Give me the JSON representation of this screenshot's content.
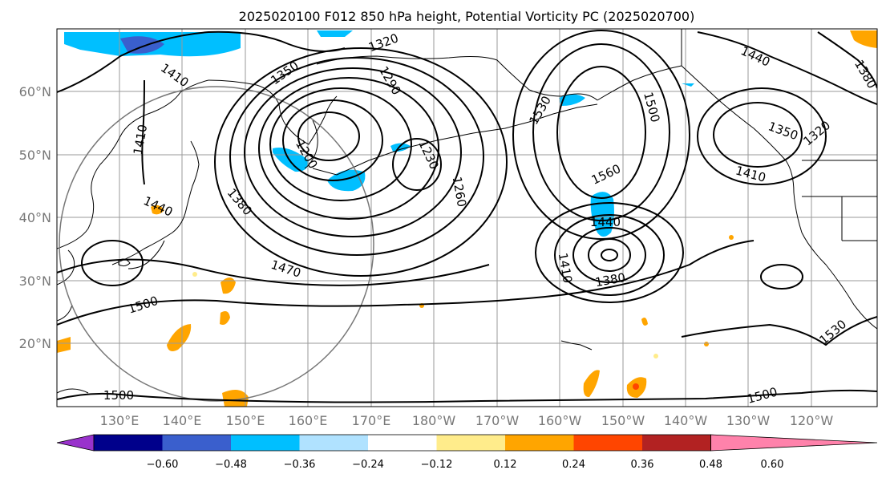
{
  "title": "2025020100 F012 850 hPa height, Potential Vorticity PC (2025020700)",
  "latitude_labels": [
    "20°N",
    "30°N",
    "40°N",
    "50°N",
    "60°N"
  ],
  "longitude_labels": [
    "130°E",
    "140°E",
    "150°E",
    "160°E",
    "170°E",
    "180°W",
    "170°W",
    "160°W",
    "150°W",
    "140°W",
    "130°W",
    "120°W"
  ],
  "contour_labels": [
    "1320",
    "1350",
    "1380",
    "1410",
    "1410",
    "1410",
    "1440",
    "1440",
    "1440",
    "1470",
    "1500",
    "1500",
    "1500",
    "1500",
    "1530",
    "1530",
    "1560",
    "1200",
    "1230",
    "1260",
    "1290",
    "1350",
    "1320",
    "1380",
    "1380",
    "1410"
  ],
  "colorbar": {
    "tick_labels": [
      "−0.60",
      "−0.48",
      "−0.36",
      "−0.24",
      "−0.12",
      "0.12",
      "0.24",
      "0.36",
      "0.48",
      "0.60"
    ],
    "colors": [
      "#9932cc",
      "#00008b",
      "#3a5fcd",
      "#00bfff",
      "#b0e2ff",
      "#ffffff",
      "#ffec8b",
      "#ffa500",
      "#ff4500",
      "#b22222",
      "#ff82ab"
    ]
  },
  "colors": {
    "height_contour": "#000000",
    "gridline": "#9a9a9a",
    "axis_label": "#777777",
    "pv_negative": "#00bfff",
    "pv_positive": "#ffa500"
  }
}
